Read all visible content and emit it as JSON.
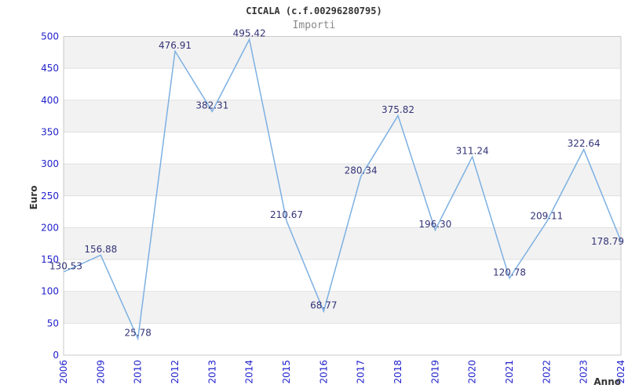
{
  "chart_data": {
    "type": "line",
    "title": "CICALA (c.f.00296280795)",
    "subtitle": "Importi",
    "xlabel": "Anno",
    "ylabel": "Euro",
    "categories": [
      "2006",
      "2009",
      "2010",
      "2012",
      "2013",
      "2014",
      "2015",
      "2016",
      "2017",
      "2018",
      "2019",
      "2020",
      "2021",
      "2022",
      "2023",
      "2024"
    ],
    "values": [
      130.53,
      156.88,
      25.78,
      476.91,
      382.31,
      495.42,
      210.67,
      68.77,
      280.34,
      375.82,
      196.3,
      311.24,
      120.78,
      209.11,
      322.64,
      178.79
    ],
    "point_labels": [
      "130.53",
      "156.88",
      "25.78",
      "476.91",
      "382.31",
      "495.42",
      "210.67",
      "68.77",
      "280.34",
      "375.82",
      "196.30",
      "311.24",
      "120.78",
      "209.11",
      "322.64",
      "178.79"
    ],
    "ylim": [
      0,
      500
    ],
    "yticks": [
      0,
      50,
      100,
      150,
      200,
      250,
      300,
      350,
      400,
      450,
      500
    ],
    "grid": "horizontal-bands-every-50",
    "legend": "none",
    "colors": {
      "line": "#7cb0e2",
      "axis_tick_label": "#2121cd",
      "point_label": "#333377",
      "band_fill": "#f2f2f2",
      "gridline": "#e0e0e0",
      "plot_border": "#c9c9c9",
      "title": "#333333",
      "subtitle": "#888888",
      "axis_name_label": "#333333"
    }
  }
}
